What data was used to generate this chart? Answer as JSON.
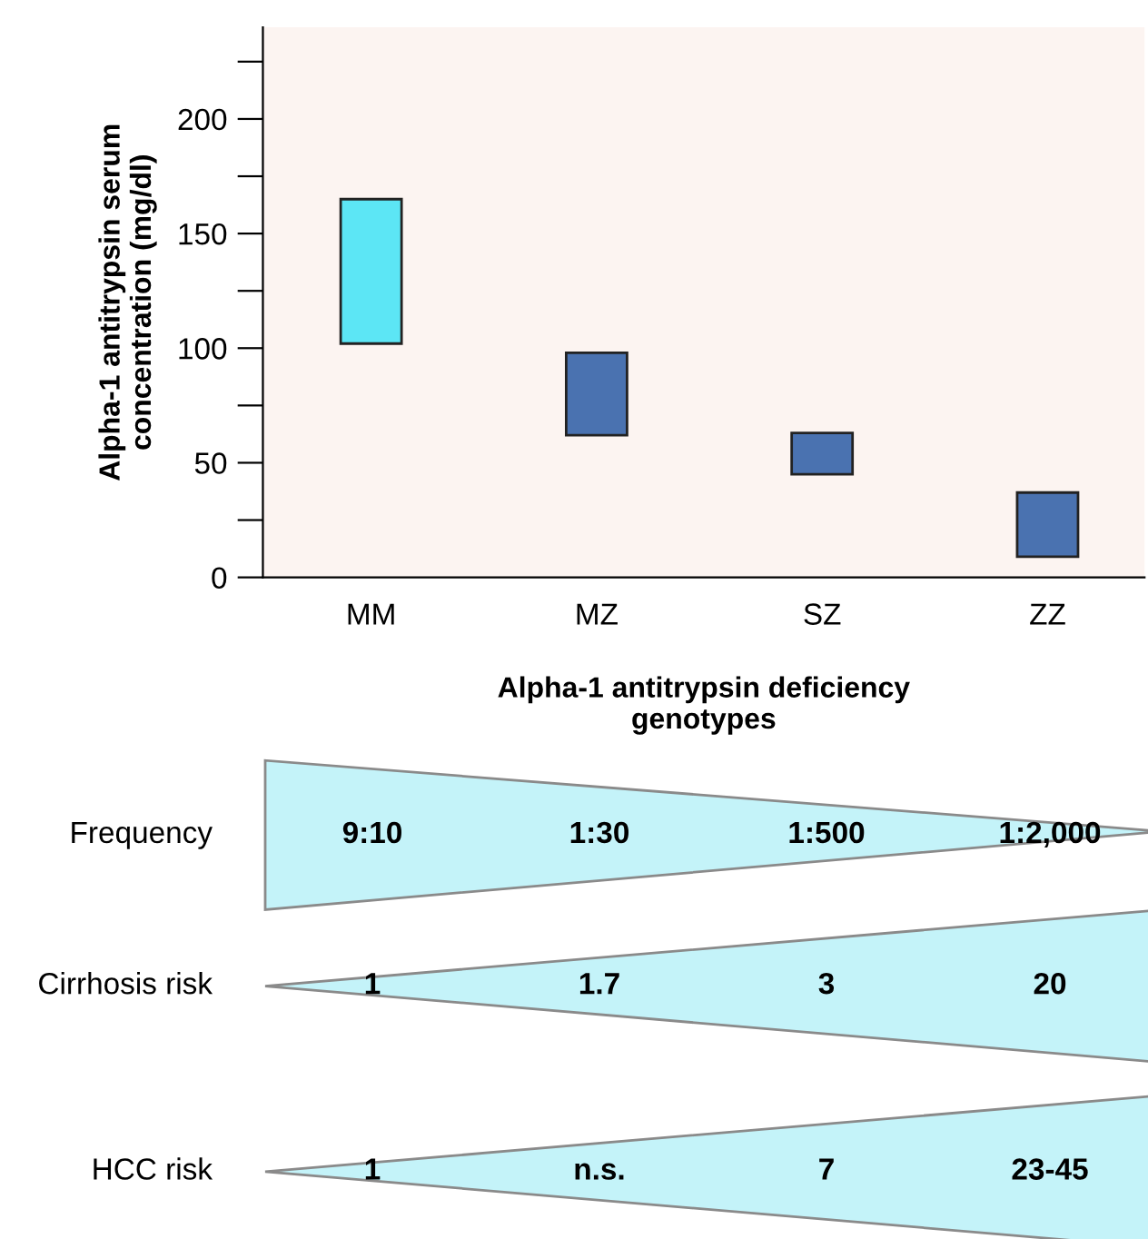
{
  "chart_data": [
    {
      "type": "bar",
      "categories": [
        "MM",
        "MZ",
        "SZ",
        "ZZ"
      ],
      "values": [
        63,
        36,
        18,
        28
      ],
      "base": [
        102,
        62,
        45,
        9
      ],
      "colors": [
        "#5ce6f5",
        "#4a72b0",
        "#4a72b0",
        "#4a72b0"
      ],
      "ylabel": "Alpha-1 antitrypsin serum\nconcentration (mg/dl)",
      "xlabel": "Alpha-1 antitrypsin deficiency\ngenotypes",
      "ylim": [
        0,
        240
      ],
      "yticks": [
        0,
        {
          "value": 25,
          "label": null
        },
        50,
        {
          "value": 75,
          "label": null
        },
        100,
        {
          "value": 125,
          "label": null
        },
        150,
        {
          "value": 175,
          "label": null
        },
        200,
        {
          "value": 225,
          "label": null
        }
      ],
      "grid": false,
      "legend": false
    },
    {
      "type": "other",
      "annotations": [
        "Frequency",
        "9:10",
        "1:30",
        "1:500",
        "1:2,000",
        "Cirrhosis risk",
        "1",
        "1.7",
        "3",
        "20",
        "HCC risk",
        "1",
        "n.s.",
        "7",
        "23-45"
      ]
    }
  ]
}
